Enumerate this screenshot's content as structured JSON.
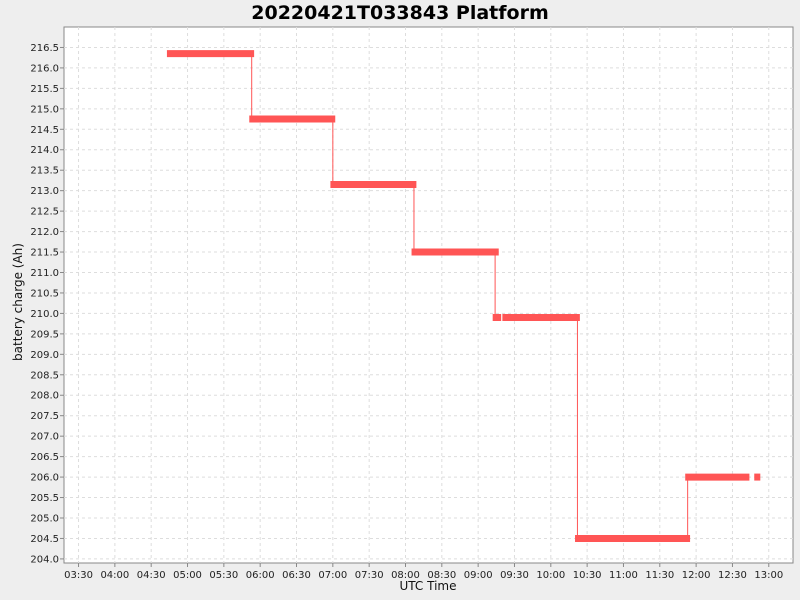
{
  "chart_data": {
    "type": "line",
    "title": "20220421T033843 Platform",
    "xlabel": "UTC Time",
    "ylabel": "battery charge (Ah)",
    "xlim": [
      "03:18",
      "13:20"
    ],
    "ylim": [
      203.9,
      217.0
    ],
    "x_ticks": [
      "03:30",
      "04:00",
      "04:30",
      "05:00",
      "05:30",
      "06:00",
      "06:30",
      "07:00",
      "07:30",
      "08:00",
      "08:30",
      "09:00",
      "09:30",
      "10:00",
      "10:30",
      "11:00",
      "11:30",
      "12:00",
      "12:30",
      "13:00"
    ],
    "y_ticks": [
      "204.0",
      "204.5",
      "205.0",
      "205.5",
      "206.0",
      "206.5",
      "207.0",
      "207.5",
      "208.0",
      "208.5",
      "209.0",
      "209.5",
      "210.0",
      "210.5",
      "211.0",
      "211.5",
      "212.0",
      "212.5",
      "213.0",
      "213.5",
      "214.0",
      "214.5",
      "215.0",
      "215.5",
      "216.0",
      "216.5"
    ],
    "grid": true,
    "series_color": "#ff5555",
    "series": [
      {
        "segments": [
          {
            "start": "04:43",
            "end": "05:55",
            "value": 216.35
          },
          {
            "start": "05:51",
            "end": "07:02",
            "value": 214.75
          },
          {
            "start": "06:58",
            "end": "08:09",
            "value": 213.15
          },
          {
            "start": "08:05",
            "end": "09:17",
            "value": 211.5
          },
          {
            "start": "09:12",
            "end": "09:19",
            "value": 209.9
          },
          {
            "start": "09:20",
            "end": "10:24",
            "value": 209.9
          },
          {
            "start": "10:20",
            "end": "11:55",
            "value": 204.5
          },
          {
            "start": "11:51",
            "end": "12:44",
            "value": 206.0
          },
          {
            "start": "12:48",
            "end": "12:53",
            "value": 206.0
          }
        ],
        "steps": [
          {
            "time": "05:53",
            "from": 216.35,
            "to": 214.75
          },
          {
            "time": "07:00",
            "from": 214.75,
            "to": 213.15
          },
          {
            "time": "08:07",
            "from": 213.15,
            "to": 211.5
          },
          {
            "time": "09:14",
            "from": 211.5,
            "to": 209.9
          },
          {
            "time": "10:22",
            "from": 209.9,
            "to": 204.5
          },
          {
            "time": "11:53",
            "from": 204.5,
            "to": 206.0
          }
        ]
      }
    ]
  }
}
